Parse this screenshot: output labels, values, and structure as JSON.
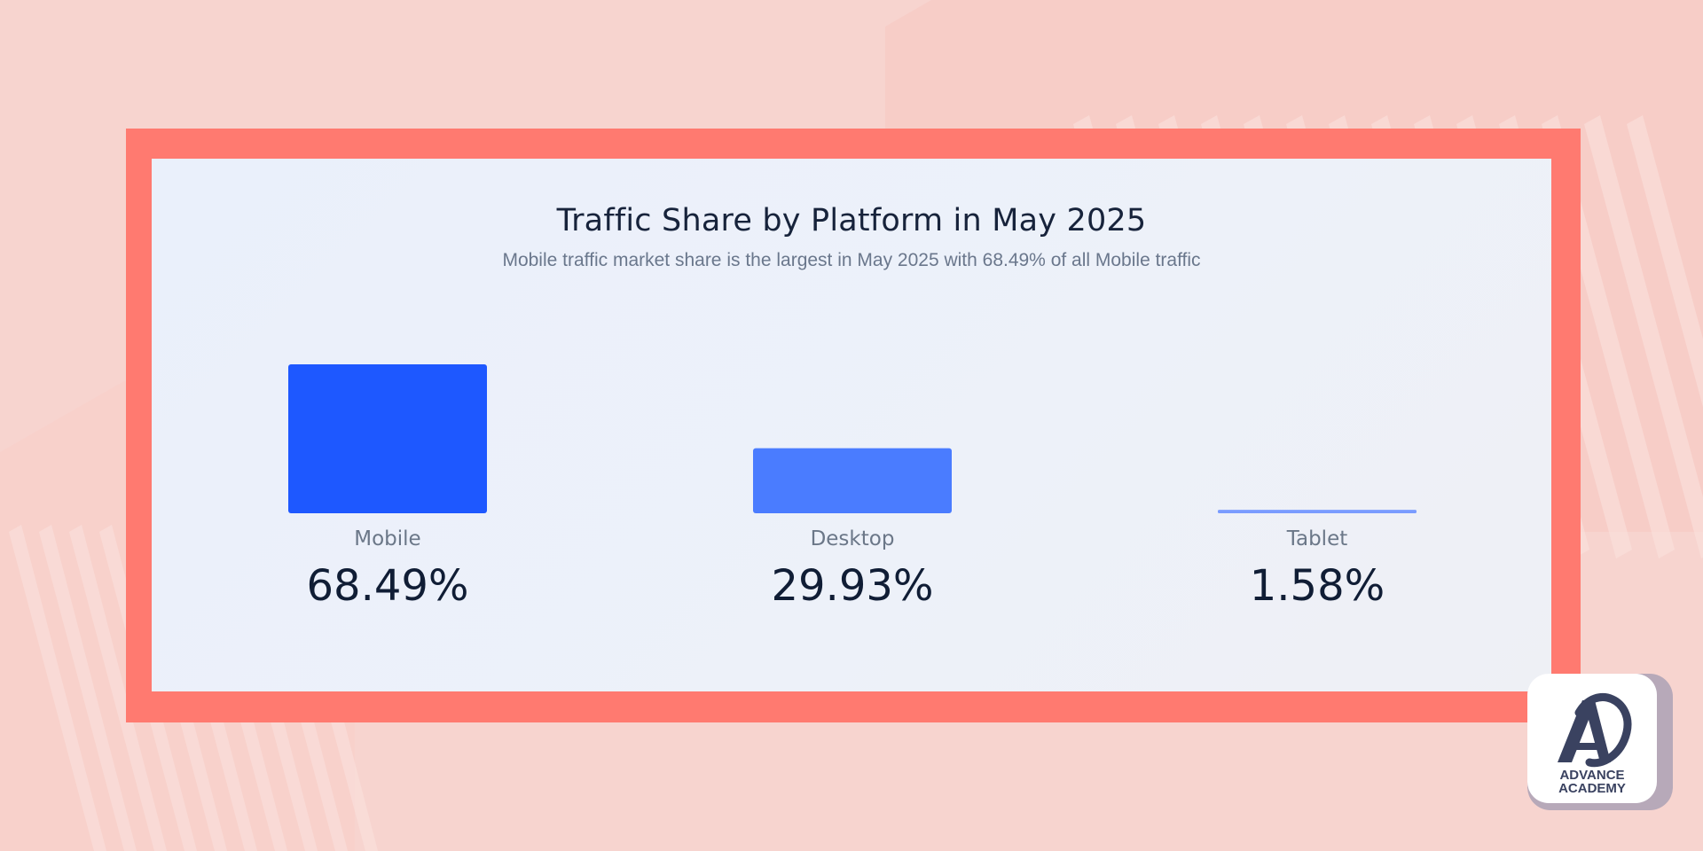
{
  "chart_data": {
    "type": "bar",
    "title": "Traffic Share by Platform in May 2025",
    "subtitle": "Mobile traffic market share is the largest in May 2025 with 68.49% of all Mobile traffic",
    "categories": [
      "Mobile",
      "Desktop",
      "Tablet"
    ],
    "values": [
      68.49,
      29.93,
      1.58
    ],
    "value_labels": [
      "68.49%",
      "29.93%",
      "1.58%"
    ],
    "colors": [
      "#1e58ff",
      "#4a7cff",
      "#7a9cff"
    ],
    "ylim": [
      0,
      68.49
    ],
    "grid": false,
    "xlabel": "",
    "ylabel": ""
  },
  "logo": {
    "line1": "ADVANCE",
    "line2": "ACADEMY",
    "color": "#3a4260"
  },
  "colors": {
    "frame": "#ff7a70",
    "background": "#f7d4cf",
    "card": "#edf1f9"
  }
}
